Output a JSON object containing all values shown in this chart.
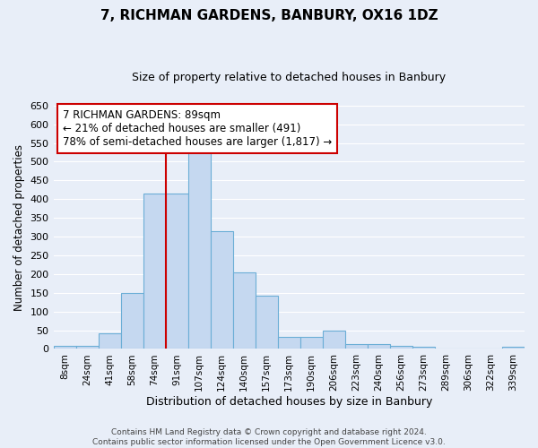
{
  "title": "7, RICHMAN GARDENS, BANBURY, OX16 1DZ",
  "subtitle": "Size of property relative to detached houses in Banbury",
  "xlabel": "Distribution of detached houses by size in Banbury",
  "ylabel": "Number of detached properties",
  "bar_labels": [
    "8sqm",
    "24sqm",
    "41sqm",
    "58sqm",
    "74sqm",
    "91sqm",
    "107sqm",
    "124sqm",
    "140sqm",
    "157sqm",
    "173sqm",
    "190sqm",
    "206sqm",
    "223sqm",
    "240sqm",
    "256sqm",
    "273sqm",
    "289sqm",
    "306sqm",
    "322sqm",
    "339sqm"
  ],
  "bar_values": [
    8,
    8,
    42,
    150,
    415,
    415,
    530,
    315,
    205,
    143,
    33,
    33,
    48,
    13,
    13,
    8,
    5,
    2,
    2,
    2,
    5
  ],
  "bar_color": "#c5d8f0",
  "bar_edge_color": "#6baed6",
  "vline_color": "#cc0000",
  "vline_position": 4.5,
  "annotation_title": "7 RICHMAN GARDENS: 89sqm",
  "annotation_line1": "← 21% of detached houses are smaller (491)",
  "annotation_line2": "78% of semi-detached houses are larger (1,817) →",
  "annotation_box_color": "#ffffff",
  "annotation_box_edge": "#cc0000",
  "ylim": [
    0,
    650
  ],
  "yticks": [
    0,
    50,
    100,
    150,
    200,
    250,
    300,
    350,
    400,
    450,
    500,
    550,
    600,
    650
  ],
  "footer_line1": "Contains HM Land Registry data © Crown copyright and database right 2024.",
  "footer_line2": "Contains public sector information licensed under the Open Government Licence v3.0.",
  "bg_color": "#e8eef8",
  "plot_bg_color": "#e8eef8",
  "grid_color": "#ffffff",
  "title_fontsize": 11,
  "subtitle_fontsize": 9
}
